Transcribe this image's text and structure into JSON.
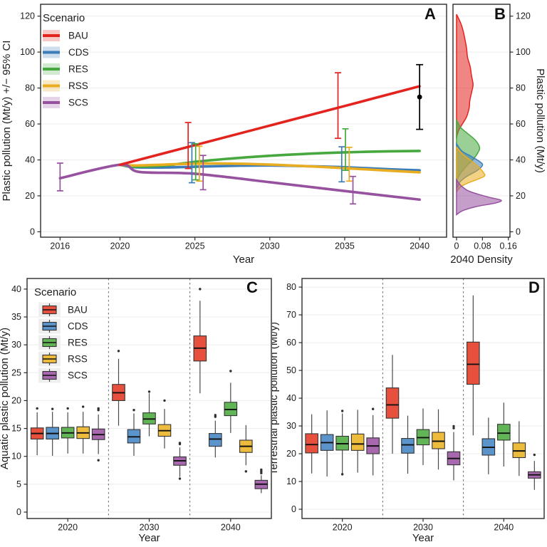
{
  "legend": {
    "title": "Scenario"
  },
  "scenarios": [
    {
      "name": "BAU",
      "line": "#e3231d",
      "fill": "#e6503c"
    },
    {
      "name": "CDS",
      "line": "#3c7cb8",
      "fill": "#5b93cb"
    },
    {
      "name": "RES",
      "line": "#47a83f",
      "fill": "#62b556"
    },
    {
      "name": "RSS",
      "line": "#e9ad21",
      "fill": "#eebc3d"
    },
    {
      "name": "SCS",
      "line": "#96519f",
      "fill": "#a768ad"
    }
  ],
  "chart_data": [
    {
      "id": "A",
      "type": "line",
      "panel_label": "A",
      "xlabel": "Year",
      "ylabel": "Plastic pollution (Mt/y) +/− 95% CI",
      "xlim": [
        2014.7,
        2041.8
      ],
      "ylim": [
        -3,
        126.6
      ],
      "xticks": [
        2016,
        2020,
        2025,
        2030,
        2035,
        2040
      ],
      "yticks": [
        0,
        20,
        40,
        60,
        80,
        100,
        120
      ],
      "show_legend": true,
      "series": [
        {
          "name": "CDS",
          "x": [
            2020,
            2021,
            2023,
            2025,
            2028,
            2030,
            2033,
            2035,
            2038,
            2040
          ],
          "y": [
            37.3,
            35.9,
            35.8,
            36.2,
            36.8,
            36.9,
            36.4,
            35.9,
            34.8,
            34.2
          ]
        },
        {
          "name": "RES",
          "x": [
            2020,
            2021,
            2023,
            2025,
            2027,
            2030,
            2033,
            2035,
            2038,
            2040
          ],
          "y": [
            37.3,
            36.2,
            36.9,
            38.9,
            40.5,
            42.3,
            43.6,
            44.2,
            44.8,
            45.0
          ]
        },
        {
          "name": "RSS",
          "x": [
            2020,
            2021,
            2023,
            2025,
            2027,
            2030,
            2033,
            2035,
            2038,
            2040
          ],
          "y": [
            37.3,
            36.9,
            37.4,
            37.9,
            38.0,
            37.4,
            36.3,
            35.4,
            34.0,
            33.1
          ]
        },
        {
          "name": "SCS",
          "x": [
            2016,
            2020,
            2021.3,
            2025,
            2030,
            2035,
            2040
          ],
          "y": [
            29.8,
            37.3,
            33.3,
            32.3,
            27.6,
            22.7,
            17.9
          ]
        },
        {
          "name": "BAU",
          "x": [
            2020,
            2025,
            2030,
            2035,
            2040
          ],
          "y": [
            37.3,
            48.2,
            59.1,
            70.0,
            81.0
          ]
        }
      ],
      "error_bars": [
        {
          "name": "SCS",
          "x": 2016,
          "lo": 22.8,
          "hi": 38.2
        },
        {
          "name": "BAU",
          "x": 2024.55,
          "lo": 35.2,
          "hi": 60.8
        },
        {
          "name": "CDS",
          "x": 2024.8,
          "lo": 27.3,
          "hi": 49.6
        },
        {
          "name": "RES",
          "x": 2025.05,
          "lo": 28.9,
          "hi": 49.0
        },
        {
          "name": "RSS",
          "x": 2025.3,
          "lo": 28.2,
          "hi": 47.6
        },
        {
          "name": "SCS",
          "x": 2025.55,
          "lo": 23.4,
          "hi": 42.5
        },
        {
          "name": "BAU",
          "x": 2034.55,
          "lo": 52.0,
          "hi": 88.5
        },
        {
          "name": "CDS",
          "x": 2034.8,
          "lo": 27.8,
          "hi": 47.3
        },
        {
          "name": "RES",
          "x": 2035.05,
          "lo": 34.2,
          "hi": 57.3
        },
        {
          "name": "RSS",
          "x": 2035.3,
          "lo": 28.2,
          "hi": 47.0
        },
        {
          "name": "SCS",
          "x": 2035.55,
          "lo": 15.5,
          "hi": 30.8
        }
      ],
      "obs_point": {
        "x": 2040,
        "y": 75,
        "lo": 57,
        "hi": 93,
        "color": "#000000"
      }
    },
    {
      "id": "B",
      "type": "density",
      "panel_label": "B",
      "xlabel": "2040 Density",
      "ylabel": "Plastic pollution (Mt/y)",
      "xlim": [
        -0.011,
        0.165
      ],
      "ylim": [
        -3,
        126.6
      ],
      "xticks": [
        0,
        0.08,
        0.16
      ],
      "xtick_labels": [
        "0",
        "0.08",
        "0.16"
      ],
      "yticks": [
        0,
        20,
        40,
        60,
        80,
        100,
        120
      ],
      "series": [
        {
          "name": "BAU",
          "points": [
            [
              121,
              0
            ],
            [
              116,
              0.013
            ],
            [
              112,
              0.02
            ],
            [
              107,
              0.026
            ],
            [
              102,
              0.031
            ],
            [
              97,
              0.034
            ],
            [
              92,
              0.042
            ],
            [
              87,
              0.046
            ],
            [
              82,
              0.051
            ],
            [
              78,
              0.047
            ],
            [
              73,
              0.041
            ],
            [
              69,
              0.039
            ],
            [
              64,
              0.031
            ],
            [
              60,
              0.018
            ],
            [
              57,
              0.008
            ],
            [
              54,
              0.002
            ],
            [
              52,
              0
            ]
          ]
        },
        {
          "name": "RES",
          "points": [
            [
              62,
              0
            ],
            [
              58,
              0.013
            ],
            [
              55,
              0.032
            ],
            [
              51,
              0.058
            ],
            [
              47,
              0.071
            ],
            [
              44,
              0.066
            ],
            [
              40,
              0.05
            ],
            [
              37,
              0.033
            ],
            [
              33,
              0.014
            ],
            [
              30,
              0.004
            ],
            [
              28,
              0
            ]
          ]
        },
        {
          "name": "CDS",
          "points": [
            [
              49,
              0
            ],
            [
              45,
              0.016
            ],
            [
              42,
              0.045
            ],
            [
              39,
              0.072
            ],
            [
              37,
              0.08
            ],
            [
              34,
              0.063
            ],
            [
              31,
              0.033
            ],
            [
              28,
              0.012
            ],
            [
              25,
              0.003
            ],
            [
              24,
              0
            ]
          ]
        },
        {
          "name": "RSS",
          "points": [
            [
              47,
              0
            ],
            [
              43,
              0.02
            ],
            [
              39,
              0.049
            ],
            [
              36,
              0.068
            ],
            [
              33,
              0.083
            ],
            [
              31,
              0.086
            ],
            [
              29,
              0.062
            ],
            [
              27,
              0.033
            ],
            [
              25,
              0.013
            ],
            [
              23,
              0.003
            ],
            [
              22,
              0
            ]
          ]
        },
        {
          "name": "SCS",
          "points": [
            [
              29,
              0
            ],
            [
              26,
              0.012
            ],
            [
              23,
              0.034
            ],
            [
              21,
              0.065
            ],
            [
              19,
              0.105
            ],
            [
              17.5,
              0.138
            ],
            [
              16,
              0.12
            ],
            [
              14,
              0.06
            ],
            [
              12,
              0.022
            ],
            [
              10.5,
              0.007
            ],
            [
              9.5,
              0
            ]
          ]
        }
      ]
    },
    {
      "id": "C",
      "type": "boxplot",
      "panel_label": "C",
      "xlabel": "Year",
      "ylabel": "Aquatic plastic pollution (Mt/y)",
      "categories": [
        "2020",
        "2030",
        "2040"
      ],
      "ylim": [
        -1.15,
        41.9
      ],
      "yticks": [
        0,
        5,
        10,
        15,
        20,
        25,
        30,
        35,
        40
      ],
      "show_legend": true,
      "series": [
        {
          "name": "BAU",
          "boxes": [
            {
              "lo": 10.2,
              "q1": 13.1,
              "med": 14.1,
              "q3": 15.1,
              "hi": 17.9,
              "out": [
                18.6
              ]
            },
            {
              "lo": 15.5,
              "q1": 20.0,
              "med": 21.4,
              "q3": 22.9,
              "hi": 27.5,
              "out": [
                28.9
              ]
            },
            {
              "lo": 21.3,
              "q1": 27.1,
              "med": 29.4,
              "q3": 31.6,
              "hi": 37.9,
              "out": [
                40.0
              ]
            }
          ]
        },
        {
          "name": "CDS",
          "boxes": [
            {
              "lo": 10.1,
              "q1": 13.1,
              "med": 14.1,
              "q3": 15.2,
              "hi": 18.0,
              "out": [
                18.5
              ]
            },
            {
              "lo": 10.1,
              "q1": 12.4,
              "med": 13.5,
              "q3": 14.8,
              "hi": 17.7,
              "out": [
                18.3
              ]
            },
            {
              "lo": 9.8,
              "q1": 11.8,
              "med": 13.1,
              "q3": 14.1,
              "hi": 16.4,
              "out": [
                17.1,
                17.4
              ]
            }
          ]
        },
        {
          "name": "RES",
          "boxes": [
            {
              "lo": 10.5,
              "q1": 13.3,
              "med": 14.2,
              "q3": 15.2,
              "hi": 17.9,
              "out": [
                18.6
              ]
            },
            {
              "lo": 13.6,
              "q1": 15.8,
              "med": 16.7,
              "q3": 17.8,
              "hi": 21.3,
              "out": [
                21.6
              ]
            },
            {
              "lo": 14.2,
              "q1": 17.3,
              "med": 18.4,
              "q3": 19.7,
              "hi": 23.2,
              "out": [
                25.3
              ]
            }
          ]
        },
        {
          "name": "RSS",
          "boxes": [
            {
              "lo": 10.5,
              "q1": 13.2,
              "med": 14.2,
              "q3": 15.3,
              "hi": 18.0,
              "out": [
                18.9
              ]
            },
            {
              "lo": 11.4,
              "q1": 13.6,
              "med": 14.6,
              "q3": 15.7,
              "hi": 18.5,
              "out": [
                20.0
              ]
            },
            {
              "lo": 8.4,
              "q1": 10.7,
              "med": 11.8,
              "q3": 12.9,
              "hi": 15.6,
              "out": [
                7.3
              ]
            }
          ]
        },
        {
          "name": "SCS",
          "boxes": [
            {
              "lo": 10.4,
              "q1": 13.0,
              "med": 13.9,
              "q3": 14.9,
              "hi": 17.5,
              "out": [
                18.3,
                18.6,
                9.3
              ]
            },
            {
              "lo": 6.3,
              "q1": 8.4,
              "med": 9.2,
              "q3": 9.9,
              "hi": 11.6,
              "out": [
                12.2,
                12.4,
                6.0
              ]
            },
            {
              "lo": 3.4,
              "q1": 4.2,
              "med": 5.0,
              "q3": 5.7,
              "hi": 6.6,
              "out": [
                7.0,
                7.3,
                7.6
              ]
            }
          ]
        }
      ]
    },
    {
      "id": "D",
      "type": "boxplot",
      "panel_label": "D",
      "xlabel": "Year",
      "ylabel": "Terrestrial plastic pollution (Mt/y)",
      "categories": [
        "2020",
        "2030",
        "2040"
      ],
      "ylim": [
        -3.33,
        83.1
      ],
      "yticks": [
        0,
        10,
        20,
        30,
        40,
        50,
        60,
        70,
        80
      ],
      "show_legend": false,
      "series": [
        {
          "name": "BAU",
          "boxes": [
            {
              "lo": 12.9,
              "q1": 20.3,
              "med": 23.3,
              "q3": 27.2,
              "hi": 34.2,
              "out": []
            },
            {
              "lo": 20.0,
              "q1": 32.8,
              "med": 37.6,
              "q3": 43.7,
              "hi": 55.6,
              "out": []
            },
            {
              "lo": 26.6,
              "q1": 45.0,
              "med": 52.2,
              "q3": 60.2,
              "hi": 77.0,
              "out": []
            }
          ]
        },
        {
          "name": "CDS",
          "boxes": [
            {
              "lo": 11.8,
              "q1": 21.2,
              "med": 24.0,
              "q3": 26.9,
              "hi": 35.6,
              "out": []
            },
            {
              "lo": 12.8,
              "q1": 20.2,
              "med": 23.2,
              "q3": 25.5,
              "hi": 33.7,
              "out": []
            },
            {
              "lo": 12.6,
              "q1": 19.5,
              "med": 22.3,
              "q3": 25.4,
              "hi": 33.0,
              "out": []
            }
          ]
        },
        {
          "name": "RES",
          "boxes": [
            {
              "lo": 13.0,
              "q1": 21.3,
              "med": 23.6,
              "q3": 26.3,
              "hi": 34.5,
              "out": [
                35.4,
                12.6
              ]
            },
            {
              "lo": 15.9,
              "q1": 23.2,
              "med": 25.8,
              "q3": 28.7,
              "hi": 36.3,
              "out": []
            },
            {
              "lo": 15.4,
              "q1": 24.9,
              "med": 27.4,
              "q3": 30.6,
              "hi": 38.4,
              "out": []
            }
          ]
        },
        {
          "name": "RSS",
          "boxes": [
            {
              "lo": 13.2,
              "q1": 21.2,
              "med": 23.5,
              "q3": 27.1,
              "hi": 35.8,
              "out": []
            },
            {
              "lo": 14.3,
              "q1": 21.8,
              "med": 24.5,
              "q3": 27.7,
              "hi": 36.0,
              "out": []
            },
            {
              "lo": 12.0,
              "q1": 18.6,
              "med": 21.0,
              "q3": 23.9,
              "hi": 31.7,
              "out": []
            }
          ]
        },
        {
          "name": "SCS",
          "boxes": [
            {
              "lo": 12.2,
              "q1": 20.0,
              "med": 22.8,
              "q3": 25.7,
              "hi": 33.9,
              "out": [
                36.1
              ]
            },
            {
              "lo": 10.4,
              "q1": 16.0,
              "med": 18.3,
              "q3": 20.7,
              "hi": 27.8,
              "out": [
                29.2,
                29.9
              ]
            },
            {
              "lo": 7.0,
              "q1": 11.2,
              "med": 12.4,
              "q3": 13.5,
              "hi": 17.4,
              "out": [
                19.6
              ]
            }
          ]
        }
      ]
    }
  ]
}
